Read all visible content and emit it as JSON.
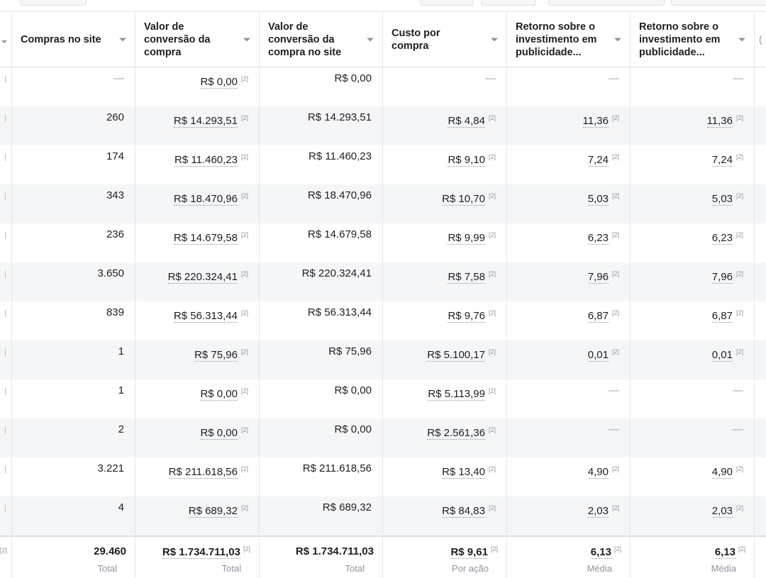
{
  "columns": [
    {
      "title": "Compras no site"
    },
    {
      "title": "Valor de\nconversão da\ncompra"
    },
    {
      "title": "Valor de\nconversão da\ncompra no site"
    },
    {
      "title": "Custo por\ncompra"
    },
    {
      "title": "Retorno sobre o\ninvestimento em\npublicidade..."
    },
    {
      "title": "Retorno sobre o\ninvestimento em\npublicidade..."
    }
  ],
  "ref_mark": "[2]",
  "rows": [
    [
      "—",
      "R$ 0,00",
      "R$ 0,00",
      "—",
      "—",
      "—"
    ],
    [
      "260",
      "R$ 14.293,51",
      "R$ 14.293,51",
      "R$ 4,84",
      "11,36",
      "11,36"
    ],
    [
      "174",
      "R$ 11.460,23",
      "R$ 11.460,23",
      "R$ 9,10",
      "7,24",
      "7,24"
    ],
    [
      "343",
      "R$ 18.470,96",
      "R$ 18.470,96",
      "R$ 10,70",
      "5,03",
      "5,03"
    ],
    [
      "236",
      "R$ 14.679,58",
      "R$ 14.679,58",
      "R$ 9,99",
      "6,23",
      "6,23"
    ],
    [
      "3.650",
      "R$ 220.324,41",
      "R$ 220.324,41",
      "R$ 7,58",
      "7,96",
      "7,96"
    ],
    [
      "839",
      "R$ 56.313,44",
      "R$ 56.313,44",
      "R$ 9,76",
      "6,87",
      "6,87"
    ],
    [
      "1",
      "R$ 75,96",
      "R$ 75,96",
      "R$ 5.100,17",
      "0,01",
      "0,01"
    ],
    [
      "1",
      "R$ 0,00",
      "R$ 0,00",
      "R$ 5.113,99",
      "—",
      "—"
    ],
    [
      "2",
      "R$ 0,00",
      "R$ 0,00",
      "R$ 2.561,36",
      "—",
      "—"
    ],
    [
      "3.221",
      "R$ 211.618,56",
      "R$ 211.618,56",
      "R$ 13,40",
      "4,90",
      "4,90"
    ],
    [
      "4",
      "R$ 689,32",
      "R$ 689,32",
      "R$ 84,83",
      "2,03",
      "2,03"
    ]
  ],
  "totals": [
    {
      "value": "29.460",
      "label": "Total"
    },
    {
      "value": "R$ 1.734.711,03",
      "label": "Total"
    },
    {
      "value": "R$ 1.734.711,03",
      "label": "Total"
    },
    {
      "value": "R$ 9,61",
      "label": "Por ação"
    },
    {
      "value": "6,13",
      "label": "Média"
    },
    {
      "value": "6,13",
      "label": "Média"
    }
  ],
  "colors": {
    "border": "#e4e6eb",
    "stripe": "#f5f6f7",
    "muted": "#8d949e"
  }
}
